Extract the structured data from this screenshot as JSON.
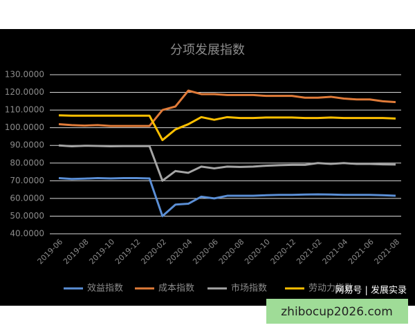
{
  "chart_data": {
    "type": "line",
    "title": "分项发展指数",
    "categories": [
      "2019-06",
      null,
      "2019-08",
      null,
      "2019-10",
      null,
      "2019-12",
      null,
      "2020-02",
      null,
      "2020-04",
      null,
      "2020-06",
      null,
      "2020-08",
      null,
      "2020-10",
      null,
      "2020-12",
      null,
      "2021-02",
      null,
      "2021-04",
      null,
      "2021-06",
      null,
      "2021-08"
    ],
    "series": [
      {
        "name": "效益指数",
        "color": "#5b8fd6",
        "values": [
          71.5,
          71,
          71.2,
          71.5,
          71.3,
          71.5,
          71.5,
          71.3,
          50,
          56.5,
          57,
          61,
          60,
          61.5,
          61.5,
          61.5,
          61.8,
          62,
          62,
          62.2,
          62.3,
          62.2,
          62,
          62,
          62,
          61.8,
          61.5
        ]
      },
      {
        "name": "成本指数",
        "color": "#e07b39",
        "values": [
          102,
          101.5,
          101.2,
          101.5,
          101,
          101,
          101,
          101,
          110,
          112,
          121,
          119,
          119,
          118.5,
          118.5,
          118.5,
          118,
          118,
          118,
          117,
          117,
          117.5,
          116.5,
          116,
          116,
          115,
          114.5
        ]
      },
      {
        "name": "市场指数",
        "color": "#a5a5a5",
        "values": [
          90,
          89.5,
          89.8,
          89.7,
          89.5,
          89.6,
          89.6,
          89.6,
          70,
          75.5,
          74.5,
          78,
          77,
          78,
          77.8,
          78,
          78.5,
          78.8,
          79,
          79,
          80,
          79.5,
          80,
          79.5,
          79.5,
          79.3,
          79.2
        ]
      },
      {
        "name": "劳动力指数",
        "color": "#ffc000",
        "values": [
          107,
          106.8,
          106.8,
          106.8,
          106.8,
          106.8,
          106.8,
          106.8,
          93,
          99,
          102,
          106,
          104.5,
          106,
          105.5,
          105.5,
          105.8,
          105.8,
          105.8,
          105.5,
          105.5,
          105.8,
          105.5,
          105.5,
          105.5,
          105.5,
          105.2
        ]
      }
    ],
    "ylim": [
      40,
      130
    ],
    "yticks": [
      {
        "value": 40,
        "label": "40.0000"
      },
      {
        "value": 50,
        "label": "50.0000"
      },
      {
        "value": 60,
        "label": "60.0000"
      },
      {
        "value": 70,
        "label": "70.0000"
      },
      {
        "value": 80,
        "label": "80.0000"
      },
      {
        "value": 90,
        "label": "90.0000"
      },
      {
        "value": 100,
        "label": "100.0000"
      },
      {
        "value": 110,
        "label": "110.0000"
      },
      {
        "value": 120,
        "label": "120.0000"
      },
      {
        "value": 130,
        "label": "130.0000"
      }
    ],
    "grid": true,
    "watermarks": [
      "网易号 | 发展实录",
      "zhibocup2026.com"
    ]
  }
}
